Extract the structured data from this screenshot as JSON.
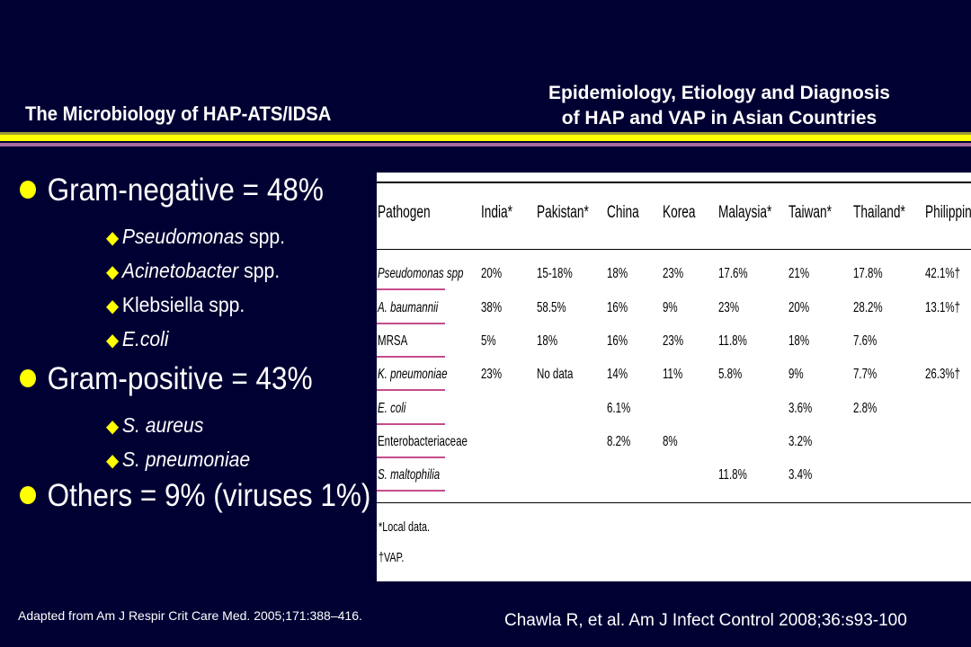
{
  "slide": {
    "title_left": "The Microbiology of HAP-ATS/IDSA",
    "title_right_line1": "Epidemiology, Etiology and Diagnosis",
    "title_right_line2": "of HAP and VAP in Asian Countries",
    "bullets": [
      {
        "level": 1,
        "text": "Gram-negative = 48%"
      },
      {
        "level": 2,
        "text": "Pseudomonas",
        "suffix": " spp.",
        "italic": true
      },
      {
        "level": 2,
        "text": "Acinetobacter",
        "suffix": " spp.",
        "italic": true
      },
      {
        "level": 2,
        "text": "Klebsiella spp.",
        "suffix": "",
        "italic": false
      },
      {
        "level": 2,
        "text": "E.coli",
        "suffix": "",
        "italic": true
      },
      {
        "level": 1,
        "text": "Gram-positive = 43%"
      },
      {
        "level": 2,
        "text": "S. aureus",
        "suffix": "",
        "italic": true
      },
      {
        "level": 2,
        "text": "S. pneumoniae",
        "suffix": "",
        "italic": true
      },
      {
        "level": 1,
        "text": "Others = 9% (viruses 1%)"
      }
    ],
    "source_left": "Adapted from Am J Respir Crit Care Med. 2005;171:388–416.",
    "source_right": "Chawla R, et al. Am J Infect Control 2008;36:s93-100",
    "colors": {
      "background": "#000033",
      "accent_yellow": "#ffff00",
      "accent_purple": "#a66ba0",
      "row_underline": "#c64c8c"
    }
  },
  "table": {
    "headers": [
      "Pathogen",
      "India*",
      "Pakistan*",
      "China",
      "Korea",
      "Malaysia*",
      "Taiwan*",
      "Thailand*",
      "Philippines"
    ],
    "rows": [
      [
        "Pseudomonas spp",
        "20%",
        "15-18%",
        "18%",
        "23%",
        "17.6%",
        "21%",
        "17.8%",
        "42.1%†"
      ],
      [
        "A. baumannii",
        "38%",
        "58.5%",
        "16%",
        "9%",
        "23%",
        "20%",
        "28.2%",
        "13.1%†"
      ],
      [
        "MRSA",
        "5%",
        "18%",
        "16%",
        "23%",
        "11.8%",
        "18%",
        "7.6%",
        ""
      ],
      [
        "K. pneumoniae",
        "23%",
        "No data",
        "14%",
        "11%",
        "5.8%",
        "9%",
        "7.7%",
        "26.3%†"
      ],
      [
        "E. coli",
        "",
        "",
        "6.1%",
        "",
        "",
        "3.6%",
        "2.8%",
        ""
      ],
      [
        "Enterobacteriaceae",
        "",
        "",
        "8.2%",
        "8%",
        "",
        "3.2%",
        "",
        ""
      ],
      [
        "S. maltophilia",
        "",
        "",
        "",
        "",
        "11.8%",
        "3.4%",
        "",
        ""
      ]
    ],
    "footnotes": [
      "*Local data.",
      "†VAP."
    ]
  }
}
